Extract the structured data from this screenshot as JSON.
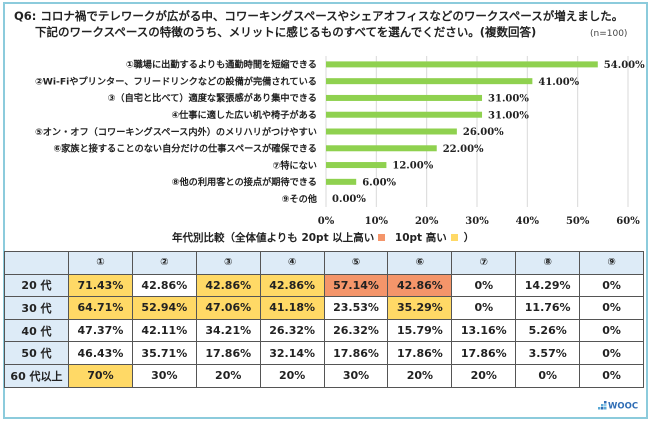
{
  "question": {
    "line1": "Q6: コロナ禍でテレワークが広がる中、コワーキングスペースやシェアオフィスなどのワークスペースが増えました。",
    "line2": "下記のワークスペースの特徴のうち、メリットに感じるものすべてを選んでください。(複数回答)",
    "n_label": "(n=100)"
  },
  "colors": {
    "bar": "#8fd14f",
    "grid": "#d9d9d9",
    "frame": "#8ccbdc",
    "header_bg": "#ddebf7",
    "highlight_20pt": "#f4956a",
    "highlight_10pt": "#ffd966"
  },
  "chart_data": {
    "type": "bar",
    "orientation": "horizontal",
    "title": "Q6: コロナ禍でテレワークが広がる中、コワーキングスペースやシェアオフィスなどのワークスペースが増えました。下記のワークスペースの特徴のうち、メリットに感じるものすべてを選んでください。(複数回答)",
    "categories": [
      "①職場に出勤するよりも通勤時間を短縮できる",
      "②Wi-Fiやプリンター、フリードリンクなどの設備が完備されている",
      "③（自宅と比べて）適度な緊張感があり集中できる",
      "④仕事に適した広い机や椅子がある",
      "⑤オン・オフ（コワーキングスペース内外）のメリハリがつけやすい",
      "⑥家族と接することのない自分だけの仕事スペースが確保できる",
      "⑦特にない",
      "⑧他の利用客との接点が期待できる",
      "⑨その他"
    ],
    "values": [
      54.0,
      41.0,
      31.0,
      31.0,
      26.0,
      22.0,
      12.0,
      6.0,
      0.0
    ],
    "value_labels": [
      "54.00%",
      "41.00%",
      "31.00%",
      "31.00%",
      "26.00%",
      "22.00%",
      "12.00%",
      "6.00%",
      "0.00%"
    ],
    "xlim": [
      0,
      60
    ],
    "xticks": [
      0,
      10,
      20,
      30,
      40,
      50,
      60
    ],
    "xtick_labels": [
      "0%",
      "10%",
      "20%",
      "30%",
      "40%",
      "50%",
      "60%"
    ],
    "xlabel": "",
    "ylabel": "",
    "grid": true,
    "legend": "none"
  },
  "comparison": {
    "title_prefix": "年代別比較（全体値よりも 20pt 以上高い",
    "title_mid": "10pt 高い",
    "title_suffix": "）",
    "columns": [
      "",
      "①",
      "②",
      "③",
      "④",
      "⑤",
      "⑥",
      "⑦",
      "⑧",
      "⑨"
    ],
    "rows": [
      {
        "label": "20 代",
        "values": [
          "71.43%",
          "42.86%",
          "42.86%",
          "42.86%",
          "57.14%",
          "42.86%",
          "0%",
          "14.29%",
          "0%"
        ],
        "highlight": [
          "y",
          "",
          "y",
          "y",
          "o",
          "o",
          "",
          "",
          ""
        ]
      },
      {
        "label": "30 代",
        "values": [
          "64.71%",
          "52.94%",
          "47.06%",
          "41.18%",
          "23.53%",
          "35.29%",
          "0%",
          "11.76%",
          "0%"
        ],
        "highlight": [
          "y",
          "y",
          "y",
          "y",
          "",
          "y",
          "",
          "",
          ""
        ]
      },
      {
        "label": "40 代",
        "values": [
          "47.37%",
          "42.11%",
          "34.21%",
          "26.32%",
          "26.32%",
          "15.79%",
          "13.16%",
          "5.26%",
          "0%"
        ],
        "highlight": [
          "",
          "",
          "",
          "",
          "",
          "",
          "",
          "",
          ""
        ]
      },
      {
        "label": "50 代",
        "values": [
          "46.43%",
          "35.71%",
          "17.86%",
          "32.14%",
          "17.86%",
          "17.86%",
          "17.86%",
          "3.57%",
          "0%"
        ],
        "highlight": [
          "",
          "",
          "",
          "",
          "",
          "",
          "",
          "",
          ""
        ]
      },
      {
        "label": "60 代以上",
        "values": [
          "70%",
          "30%",
          "20%",
          "20%",
          "30%",
          "20%",
          "20%",
          "0%",
          "0%"
        ],
        "highlight": [
          "y",
          "",
          "",
          "",
          "",
          "",
          "",
          "",
          ""
        ]
      }
    ]
  },
  "logo": {
    "text": "WOOC",
    "icon": "wooc-logo-icon"
  }
}
